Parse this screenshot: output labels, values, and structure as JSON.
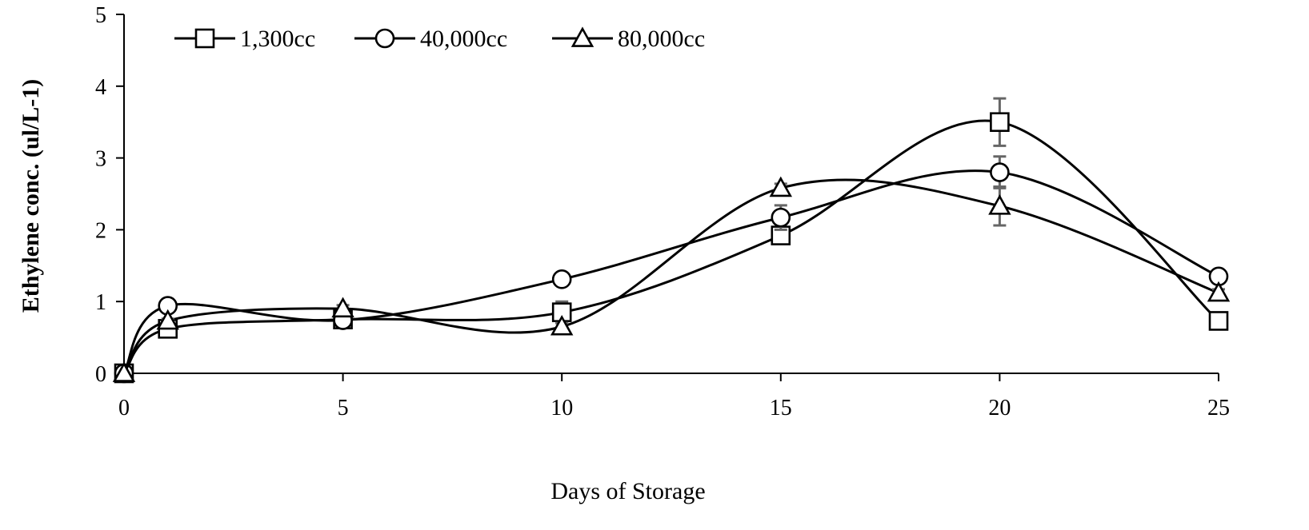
{
  "chart_data": {
    "type": "line",
    "xlabel": "Days of Storage",
    "ylabel": "Ethylene conc. (ul/L-1)",
    "xlim": [
      0,
      25
    ],
    "ylim": [
      0,
      5
    ],
    "xticks": [
      "0",
      "5",
      "10",
      "15",
      "20",
      "25"
    ],
    "yticks": [
      "0",
      "1",
      "2",
      "3",
      "4",
      "5"
    ],
    "grid": false,
    "legend_position": "top-left",
    "smooth": true,
    "series": [
      {
        "name": "1,300cc",
        "marker": "square",
        "x": [
          0,
          1,
          5,
          10,
          15,
          20,
          25
        ],
        "y": [
          0,
          0.62,
          0.75,
          0.85,
          1.92,
          3.5,
          0.73
        ],
        "error": [
          0,
          0.03,
          0.03,
          0.15,
          0.1,
          0.33,
          0.05
        ]
      },
      {
        "name": "40,000cc",
        "marker": "circle",
        "x": [
          0,
          1,
          5,
          10,
          15,
          20,
          25
        ],
        "y": [
          0,
          0.94,
          0.74,
          1.31,
          2.17,
          2.8,
          1.35
        ],
        "error": [
          0,
          0.03,
          0.03,
          0.04,
          0.17,
          0.22,
          0.05
        ]
      },
      {
        "name": "80,000cc",
        "marker": "triangle",
        "x": [
          0,
          1,
          5,
          10,
          15,
          20,
          25
        ],
        "y": [
          0,
          0.73,
          0.9,
          0.65,
          2.58,
          2.33,
          1.12
        ],
        "error": [
          0,
          0.03,
          0.05,
          0.05,
          0.06,
          0.27,
          0.05
        ]
      }
    ]
  }
}
